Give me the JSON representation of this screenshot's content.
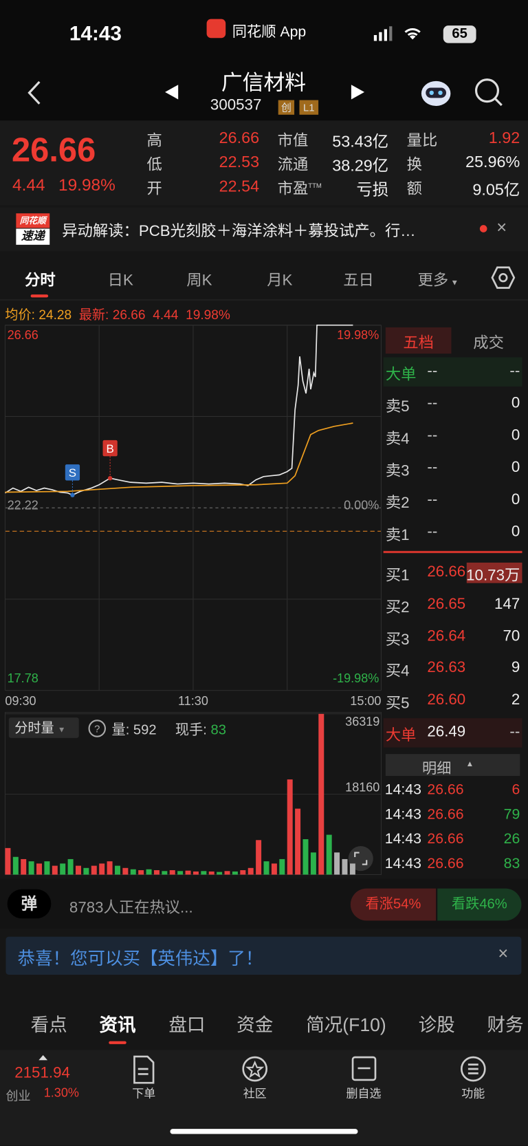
{
  "status_bar": {
    "time": "14:43",
    "app": "同花顺 App",
    "battery": "65"
  },
  "header": {
    "name": "广信材料",
    "code": "300537",
    "tags": [
      "创",
      "L1"
    ]
  },
  "quote": {
    "price": "26.66",
    "change": "4.44",
    "change_pct": "19.98%",
    "stats": [
      {
        "label": "高",
        "value": "26.66",
        "color": "#ee3b32"
      },
      {
        "label": "低",
        "value": "22.53",
        "color": "#ee3b32"
      },
      {
        "label": "开",
        "value": "22.54",
        "color": "#ee3b32"
      },
      {
        "label": "市值",
        "value": "53.43亿",
        "color": "#f0f0f0"
      },
      {
        "label": "流通",
        "value": "38.29亿",
        "color": "#f0f0f0"
      },
      {
        "label": "市盈",
        "sup": "TTM",
        "value": "亏损",
        "color": "#f0f0f0"
      },
      {
        "label": "量比",
        "value": "1.92",
        "color": "#ee3b32"
      },
      {
        "label": "换",
        "value": "25.96%",
        "color": "#f0f0f0"
      },
      {
        "label": "额",
        "value": "9.05亿",
        "color": "#f0f0f0"
      }
    ]
  },
  "news": {
    "badge": [
      "同花顺",
      "速递"
    ],
    "text": "异动解读：PCB光刻胶＋海洋涂料＋募投试产。行…"
  },
  "tabs": [
    "分时",
    "日K",
    "周K",
    "月K",
    "五日",
    "更多"
  ],
  "info_line": {
    "avg_label": "均价:",
    "avg": "24.28",
    "latest_label": "最新:",
    "latest": "26.66",
    "change": "4.44",
    "change_pct": "19.98%"
  },
  "chart_data": [
    {
      "type": "line",
      "xlim": [
        0,
        240
      ],
      "xticks": [
        {
          "value": 0,
          "label": "09:30"
        },
        {
          "value": 120,
          "label": "11:30"
        },
        {
          "value": 240,
          "label": "15:00"
        }
      ],
      "ylim": [
        17.78,
        26.66
      ],
      "yticks": [
        26.66,
        22.22,
        17.78
      ],
      "y2lim": [
        -19.98,
        19.98
      ],
      "y2ticks": [
        {
          "value": 19.98,
          "label": "19.98%"
        },
        {
          "value": 0,
          "label": "0.00%"
        },
        {
          "value": -19.98,
          "label": "-19.98%"
        }
      ],
      "series": [
        {
          "color": "#e8e8e8",
          "x": [
            0,
            5,
            10,
            15,
            20,
            25,
            30,
            35,
            40,
            43,
            48,
            55,
            60,
            67,
            72,
            80,
            90,
            100,
            110,
            120,
            130,
            140,
            150,
            155,
            160,
            165,
            170,
            175,
            180,
            183,
            185,
            187,
            188,
            190,
            192,
            194,
            195,
            197,
            198,
            199,
            222
          ],
          "values": [
            22.58,
            22.7,
            22.62,
            22.72,
            22.64,
            22.7,
            22.66,
            22.6,
            22.58,
            22.53,
            22.62,
            22.7,
            22.78,
            22.94,
            22.9,
            22.84,
            22.82,
            22.84,
            22.8,
            22.82,
            22.8,
            22.82,
            22.8,
            22.76,
            22.9,
            22.98,
            23.0,
            23.02,
            23.1,
            23.18,
            24.6,
            25.2,
            25.9,
            25.3,
            25.0,
            25.6,
            25.1,
            25.5,
            25.4,
            26.66,
            26.66
          ]
        },
        {
          "color": "#f0a020",
          "x": [
            0,
            40,
            80,
            120,
            160,
            180,
            185,
            190,
            195,
            200,
            210,
            222
          ],
          "values": [
            22.6,
            22.62,
            22.72,
            22.76,
            22.78,
            22.82,
            23.0,
            23.5,
            24.0,
            24.1,
            24.2,
            24.28
          ]
        }
      ],
      "markers": [
        {
          "label": "S",
          "x": 43,
          "y": 22.53,
          "color": "#2f6fc0"
        },
        {
          "label": "B",
          "x": 67,
          "y": 22.94,
          "color": "#d0342c"
        }
      ]
    },
    {
      "type": "bar",
      "xlim": [
        0,
        240
      ],
      "ylim": [
        0,
        36319
      ],
      "yticks": [
        36319,
        18160
      ],
      "x": [
        0,
        5,
        10,
        15,
        20,
        25,
        30,
        35,
        40,
        45,
        50,
        55,
        60,
        65,
        70,
        75,
        80,
        85,
        90,
        95,
        100,
        105,
        110,
        115,
        120,
        125,
        130,
        135,
        140,
        145,
        150,
        155,
        160,
        165,
        170,
        175,
        180,
        185,
        190,
        195,
        200,
        205,
        210,
        215,
        220
      ],
      "values": [
        6000,
        4000,
        3500,
        3000,
        2500,
        3000,
        2000,
        2500,
        3500,
        2000,
        1500,
        2000,
        2500,
        3000,
        2000,
        1500,
        1200,
        1000,
        1200,
        1000,
        800,
        1000,
        800,
        900,
        700,
        800,
        700,
        600,
        800,
        700,
        1000,
        1500,
        7800,
        3000,
        2500,
        3500,
        21500,
        14900,
        8000,
        5000,
        36319,
        9000,
        5000,
        3500,
        2500
      ],
      "colors": [
        "#e84040",
        "#2bb24c",
        "#e84040",
        "#2bb24c",
        "#e84040",
        "#2bb24c",
        "#e84040",
        "#2bb24c",
        "#2bb24c",
        "#e84040",
        "#2bb24c",
        "#e84040",
        "#e84040",
        "#e84040",
        "#2bb24c",
        "#e84040",
        "#2bb24c",
        "#e84040",
        "#2bb24c",
        "#e84040",
        "#2bb24c",
        "#e84040",
        "#2bb24c",
        "#e84040",
        "#e84040",
        "#2bb24c",
        "#e84040",
        "#2bb24c",
        "#e84040",
        "#2bb24c",
        "#e84040",
        "#e84040",
        "#e84040",
        "#2bb24c",
        "#e84040",
        "#2bb24c",
        "#e84040",
        "#e84040",
        "#2bb24c",
        "#2bb24c",
        "#e84040",
        "#2bb24c",
        "#b0b0b0",
        "#b0b0b0",
        "#b0b0b0"
      ]
    }
  ],
  "volume_info": {
    "selector": "分时量",
    "volume_label": "量:",
    "volume": "592",
    "hand_label": "现手:",
    "hand": "83"
  },
  "order_book": {
    "tabs": [
      "五档",
      "成交"
    ],
    "big_sell": {
      "label": "大单",
      "price": "--",
      "volume": "--"
    },
    "asks": [
      {
        "label": "卖5",
        "price": "--",
        "volume": "0"
      },
      {
        "label": "卖4",
        "price": "--",
        "volume": "0"
      },
      {
        "label": "卖3",
        "price": "--",
        "volume": "0"
      },
      {
        "label": "卖2",
        "price": "--",
        "volume": "0"
      },
      {
        "label": "卖1",
        "price": "--",
        "volume": "0"
      }
    ],
    "bids": [
      {
        "label": "买1",
        "price": "26.66",
        "volume": "10.73万"
      },
      {
        "label": "买2",
        "price": "26.65",
        "volume": "147"
      },
      {
        "label": "买3",
        "price": "26.64",
        "volume": "70"
      },
      {
        "label": "买4",
        "price": "26.63",
        "volume": "9"
      },
      {
        "label": "买5",
        "price": "26.60",
        "volume": "2"
      }
    ],
    "big_buy": {
      "label": "大单",
      "price": "26.49",
      "volume": "--"
    },
    "detail_label": "明细",
    "trades": [
      {
        "time": "14:43",
        "price": "26.66",
        "volume": "6",
        "color": "#ee3b32"
      },
      {
        "time": "14:43",
        "price": "26.66",
        "volume": "79",
        "color": "#2fb34a"
      },
      {
        "time": "14:43",
        "price": "26.66",
        "volume": "26",
        "color": "#2fb34a"
      },
      {
        "time": "14:43",
        "price": "26.66",
        "volume": "83",
        "color": "#2fb34a"
      }
    ]
  },
  "sentiment": {
    "icon": "弹",
    "text": "8783人正在热议...",
    "up": "看涨54%",
    "down": "看跌46%"
  },
  "banner": {
    "text": "恭喜！您可以买【英伟达】了！"
  },
  "bottom_tabs": [
    "看点",
    "资讯",
    "盘口",
    "资金",
    "简况(F10)",
    "诊股",
    "财务"
  ],
  "nav": {
    "index_value": "2151.94",
    "index_name": "创业",
    "index_change": "1.30%",
    "items": [
      "下单",
      "社区",
      "删自选",
      "功能"
    ]
  }
}
